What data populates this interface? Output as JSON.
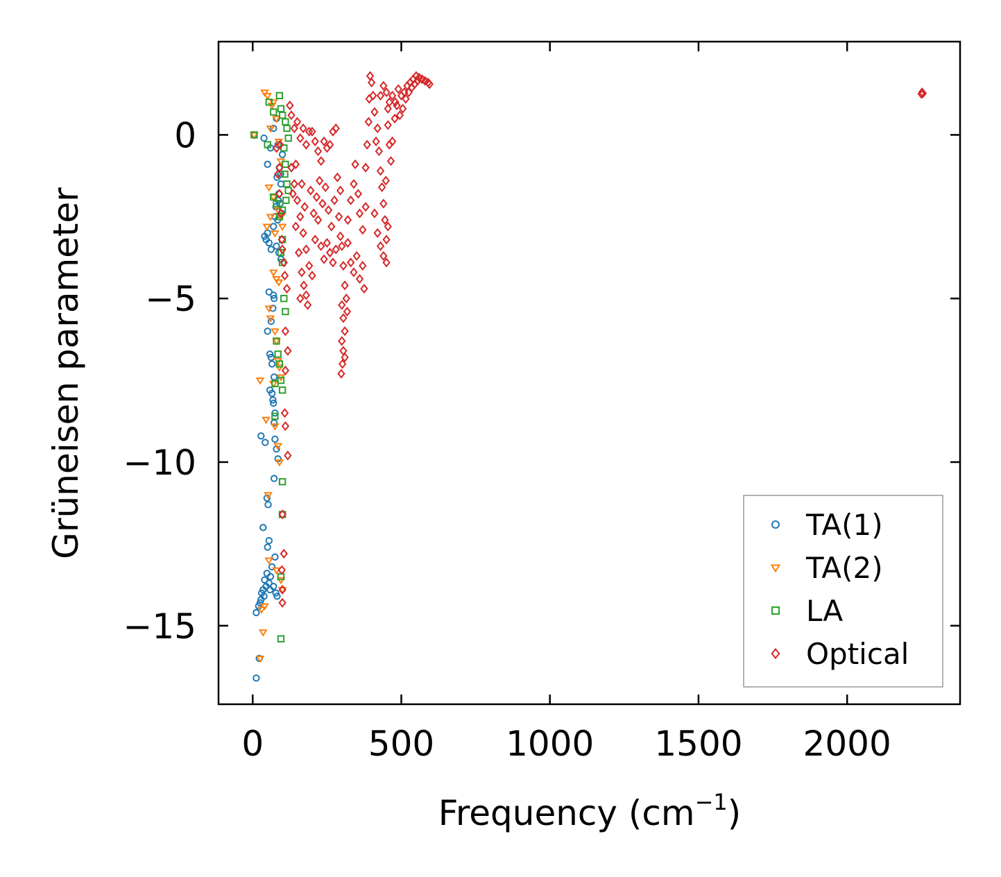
{
  "chart_data": {
    "type": "scatter",
    "title": "",
    "xlabel": "Frequency (cm",
    "xlabel_sup": "−1",
    "xlabel_suffix": ")",
    "ylabel": "Grüneisen parameter",
    "xlim": [
      -115,
      2380
    ],
    "ylim": [
      -17.4,
      2.85
    ],
    "xticks": [
      0,
      500,
      1000,
      1500,
      2000
    ],
    "xtick_labels": [
      "0",
      "500",
      "1000",
      "1500",
      "2000"
    ],
    "yticks": [
      0,
      -5,
      -10,
      -15
    ],
    "ytick_labels": [
      "0",
      "−5",
      "−10",
      "−15"
    ],
    "grid": false,
    "legend_position": "lower-right",
    "series": [
      {
        "name": "TA(1)",
        "marker": "circle",
        "color": "#1f77b4",
        "points": [
          [
            5,
            0
          ],
          [
            38,
            -0.1
          ],
          [
            50,
            -0.9
          ],
          [
            60,
            -0.4
          ],
          [
            70,
            0.2
          ],
          [
            80,
            0.5
          ],
          [
            85,
            -0.3
          ],
          [
            90,
            -1.0
          ],
          [
            95,
            -1.5
          ],
          [
            100,
            -0.6
          ],
          [
            82,
            -1.3
          ],
          [
            88,
            -1.8
          ],
          [
            92,
            -2.1
          ],
          [
            98,
            -2.4
          ],
          [
            86,
            -2.0
          ],
          [
            94,
            -1.2
          ],
          [
            78,
            -2.2
          ],
          [
            84,
            -2.6
          ],
          [
            40,
            -3.1
          ],
          [
            45,
            -3.2
          ],
          [
            50,
            -3.0
          ],
          [
            55,
            -3.3
          ],
          [
            62,
            -3.5
          ],
          [
            70,
            -2.8
          ],
          [
            75,
            -2.5
          ],
          [
            80,
            -3.4
          ],
          [
            88,
            -3.6
          ],
          [
            95,
            -3.8
          ],
          [
            55,
            -4.8
          ],
          [
            70,
            -4.9
          ],
          [
            72,
            -5.0
          ],
          [
            68,
            -5.3
          ],
          [
            62,
            -5.7
          ],
          [
            50,
            -6.0
          ],
          [
            58,
            -6.7
          ],
          [
            62,
            -6.8
          ],
          [
            65,
            -7.0
          ],
          [
            72,
            -7.4
          ],
          [
            58,
            -7.8
          ],
          [
            65,
            -7.9
          ],
          [
            68,
            -8.1
          ],
          [
            70,
            -8.2
          ],
          [
            75,
            -8.5
          ],
          [
            72,
            -8.8
          ],
          [
            28,
            -9.2
          ],
          [
            42,
            -9.4
          ],
          [
            75,
            -9.3
          ],
          [
            80,
            -9.6
          ],
          [
            85,
            -9.9
          ],
          [
            72,
            -10.5
          ],
          [
            48,
            -11.1
          ],
          [
            52,
            -11.3
          ],
          [
            35,
            -12.0
          ],
          [
            55,
            -12.4
          ],
          [
            50,
            -12.6
          ],
          [
            75,
            -12.9
          ],
          [
            20,
            -14.4
          ],
          [
            12,
            -14.6
          ],
          [
            28,
            -14.2
          ],
          [
            35,
            -13.9
          ],
          [
            40,
            -13.6
          ],
          [
            48,
            -13.4
          ],
          [
            55,
            -13.7
          ],
          [
            60,
            -13.5
          ],
          [
            65,
            -13.2
          ],
          [
            38,
            -14.1
          ],
          [
            70,
            -13.8
          ],
          [
            78,
            -14.0
          ],
          [
            82,
            -14.1
          ],
          [
            30,
            -14.0
          ],
          [
            25,
            -14.3
          ],
          [
            45,
            -13.8
          ],
          [
            58,
            -13.9
          ],
          [
            22,
            -16.0
          ],
          [
            12,
            -16.6
          ]
        ]
      },
      {
        "name": "TA(2)",
        "marker": "triangle-down",
        "color": "#ff7f0e",
        "points": [
          [
            5,
            0
          ],
          [
            40,
            1.3
          ],
          [
            50,
            1.2
          ],
          [
            60,
            0.2
          ],
          [
            65,
            0.9
          ],
          [
            70,
            1.0
          ],
          [
            80,
            0.5
          ],
          [
            88,
            -0.2
          ],
          [
            95,
            -0.8
          ],
          [
            55,
            -1.6
          ],
          [
            70,
            -1.9
          ],
          [
            85,
            -2.3
          ],
          [
            60,
            -2.5
          ],
          [
            48,
            -2.8
          ],
          [
            75,
            -3.0
          ],
          [
            95,
            -2.5
          ],
          [
            100,
            -2.8
          ],
          [
            70,
            -4.2
          ],
          [
            80,
            -4.4
          ],
          [
            88,
            -4.5
          ],
          [
            55,
            -5.3
          ],
          [
            60,
            -5.6
          ],
          [
            75,
            -6.0
          ],
          [
            80,
            -6.3
          ],
          [
            85,
            -6.9
          ],
          [
            90,
            -7.1
          ],
          [
            25,
            -7.5
          ],
          [
            70,
            -7.6
          ],
          [
            95,
            -7.4
          ],
          [
            45,
            -8.7
          ],
          [
            75,
            -8.9
          ],
          [
            85,
            -9.5
          ],
          [
            90,
            -10.0
          ],
          [
            52,
            -11.0
          ],
          [
            55,
            -13.0
          ],
          [
            80,
            -13.3
          ],
          [
            95,
            -13.6
          ],
          [
            100,
            -13.9
          ],
          [
            30,
            -14.5
          ],
          [
            40,
            -14.4
          ],
          [
            35,
            -15.2
          ],
          [
            25,
            -16.0
          ]
        ]
      },
      {
        "name": "LA",
        "marker": "square",
        "color": "#2ca02c",
        "points": [
          [
            5,
            0
          ],
          [
            55,
            1.0
          ],
          [
            70,
            0.7
          ],
          [
            90,
            1.2
          ],
          [
            95,
            0.8
          ],
          [
            100,
            0.6
          ],
          [
            110,
            0.4
          ],
          [
            115,
            0.2
          ],
          [
            120,
            -0.1
          ],
          [
            105,
            -0.4
          ],
          [
            50,
            -0.3
          ],
          [
            110,
            -0.9
          ],
          [
            115,
            -1.5
          ],
          [
            120,
            -1.7
          ],
          [
            112,
            -2.0
          ],
          [
            108,
            -1.2
          ],
          [
            100,
            -2.3
          ],
          [
            70,
            -1.9
          ],
          [
            80,
            -2.1
          ],
          [
            90,
            -2.5
          ],
          [
            100,
            -3.2
          ],
          [
            95,
            -3.6
          ],
          [
            100,
            -3.9
          ],
          [
            105,
            -5.0
          ],
          [
            110,
            -5.4
          ],
          [
            80,
            -6.3
          ],
          [
            85,
            -6.7
          ],
          [
            90,
            -7.0
          ],
          [
            95,
            -7.5
          ],
          [
            100,
            -7.8
          ],
          [
            75,
            -7.6
          ],
          [
            75,
            -8.6
          ],
          [
            100,
            -10.6
          ],
          [
            100,
            -11.6
          ],
          [
            95,
            -13.5
          ],
          [
            95,
            -15.4
          ]
        ]
      },
      {
        "name": "Optical",
        "marker": "diamond",
        "color": "#d62728",
        "points": [
          [
            80,
            -0.4
          ],
          [
            85,
            -1.2
          ],
          [
            90,
            -1.8
          ],
          [
            95,
            -2.4
          ],
          [
            98,
            -3.2
          ],
          [
            100,
            -3.5
          ],
          [
            105,
            -3.9
          ],
          [
            108,
            -4.3
          ],
          [
            115,
            -4.7
          ],
          [
            110,
            -6.0
          ],
          [
            118,
            -6.6
          ],
          [
            110,
            -7.2
          ],
          [
            108,
            -8.5
          ],
          [
            110,
            -8.9
          ],
          [
            118,
            -9.8
          ],
          [
            100,
            -11.6
          ],
          [
            105,
            -12.8
          ],
          [
            98,
            -13.3
          ],
          [
            100,
            -13.9
          ],
          [
            100,
            -14.3
          ],
          [
            90,
            -1.0
          ],
          [
            92,
            -0.3
          ],
          [
            125,
            0.9
          ],
          [
            130,
            0.6
          ],
          [
            140,
            0.2
          ],
          [
            150,
            0.4
          ],
          [
            160,
            -0.1
          ],
          [
            170,
            0.2
          ],
          [
            180,
            -0.3
          ],
          [
            190,
            0.1
          ],
          [
            200,
            0.1
          ],
          [
            210,
            -0.2
          ],
          [
            220,
            -0.5
          ],
          [
            230,
            -0.8
          ],
          [
            240,
            -0.2
          ],
          [
            250,
            -0.4
          ],
          [
            260,
            -0.3
          ],
          [
            270,
            0.1
          ],
          [
            280,
            0.2
          ],
          [
            130,
            -1.0
          ],
          [
            140,
            -1.5
          ],
          [
            150,
            -2.0
          ],
          [
            160,
            -2.5
          ],
          [
            170,
            -3.0
          ],
          [
            180,
            -3.5
          ],
          [
            190,
            -4.0
          ],
          [
            200,
            -4.3
          ],
          [
            145,
            -2.8
          ],
          [
            155,
            -3.6
          ],
          [
            165,
            -4.2
          ],
          [
            172,
            -4.6
          ],
          [
            180,
            -4.9
          ],
          [
            185,
            -5.2
          ],
          [
            160,
            -5.0
          ],
          [
            210,
            -3.2
          ],
          [
            220,
            -2.6
          ],
          [
            230,
            -3.4
          ],
          [
            240,
            -3.8
          ],
          [
            250,
            -3.3
          ],
          [
            260,
            -3.6
          ],
          [
            270,
            -3.9
          ],
          [
            280,
            -3.5
          ],
          [
            135,
            -1.8
          ],
          [
            145,
            -0.9
          ],
          [
            165,
            -1.5
          ],
          [
            175,
            -2.2
          ],
          [
            195,
            -1.7
          ],
          [
            205,
            -2.4
          ],
          [
            215,
            -1.9
          ],
          [
            225,
            -1.4
          ],
          [
            235,
            -2.1
          ],
          [
            245,
            -1.6
          ],
          [
            255,
            -2.3
          ],
          [
            265,
            -2.8
          ],
          [
            275,
            -2.0
          ],
          [
            285,
            -1.3
          ],
          [
            295,
            -1.7
          ],
          [
            290,
            -2.5
          ],
          [
            295,
            -3.1
          ],
          [
            300,
            -3.4
          ],
          [
            305,
            -4.0
          ],
          [
            310,
            -4.6
          ],
          [
            300,
            -5.2
          ],
          [
            305,
            -5.6
          ],
          [
            310,
            -6.0
          ],
          [
            300,
            -6.3
          ],
          [
            305,
            -6.6
          ],
          [
            310,
            -6.8
          ],
          [
            302,
            -7.0
          ],
          [
            298,
            -7.3
          ],
          [
            315,
            -5.0
          ],
          [
            318,
            -5.4
          ],
          [
            320,
            -2.6
          ],
          [
            330,
            -2.0
          ],
          [
            340,
            -1.5
          ],
          [
            345,
            -0.9
          ],
          [
            355,
            -1.8
          ],
          [
            360,
            -2.4
          ],
          [
            370,
            -2.9
          ],
          [
            380,
            -2.2
          ],
          [
            320,
            -3.3
          ],
          [
            330,
            -3.9
          ],
          [
            340,
            -4.2
          ],
          [
            350,
            -3.7
          ],
          [
            360,
            -4.4
          ],
          [
            370,
            -4.0
          ],
          [
            375,
            -4.7
          ],
          [
            380,
            -1.0
          ],
          [
            385,
            -0.3
          ],
          [
            390,
            0.4
          ],
          [
            392,
            1.1
          ],
          [
            395,
            1.8
          ],
          [
            400,
            1.6
          ],
          [
            405,
            1.2
          ],
          [
            410,
            0.7
          ],
          [
            415,
            -0.2
          ],
          [
            420,
            0.2
          ],
          [
            425,
            -0.5
          ],
          [
            430,
            -1.1
          ],
          [
            435,
            -1.6
          ],
          [
            440,
            -2.1
          ],
          [
            445,
            -2.6
          ],
          [
            450,
            -3.2
          ],
          [
            410,
            -2.4
          ],
          [
            420,
            -3.0
          ],
          [
            430,
            -3.4
          ],
          [
            440,
            -3.7
          ],
          [
            450,
            -3.9
          ],
          [
            455,
            -2.8
          ],
          [
            448,
            -1.4
          ],
          [
            430,
            1.2
          ],
          [
            440,
            1.5
          ],
          [
            450,
            1.3
          ],
          [
            455,
            0.8
          ],
          [
            460,
            1.0
          ],
          [
            470,
            1.2
          ],
          [
            480,
            1.0
          ],
          [
            490,
            1.4
          ],
          [
            500,
            1.2
          ],
          [
            455,
            0.3
          ],
          [
            460,
            -0.3
          ],
          [
            465,
            -0.8
          ],
          [
            470,
            -0.2
          ],
          [
            478,
            0.5
          ],
          [
            485,
            0.9
          ],
          [
            495,
            0.6
          ],
          [
            505,
            0.8
          ],
          [
            510,
            1.3
          ],
          [
            520,
            1.5
          ],
          [
            530,
            1.6
          ],
          [
            540,
            1.7
          ],
          [
            550,
            1.8
          ],
          [
            560,
            1.75
          ],
          [
            570,
            1.7
          ],
          [
            580,
            1.65
          ],
          [
            590,
            1.6
          ],
          [
            595,
            1.55
          ],
          [
            515,
            1.1
          ],
          [
            525,
            1.3
          ],
          [
            535,
            1.45
          ],
          [
            545,
            1.55
          ],
          [
            555,
            1.65
          ],
          [
            2250,
            1.25
          ],
          [
            2252,
            1.3
          ],
          [
            2255,
            1.27
          ]
        ]
      }
    ]
  }
}
